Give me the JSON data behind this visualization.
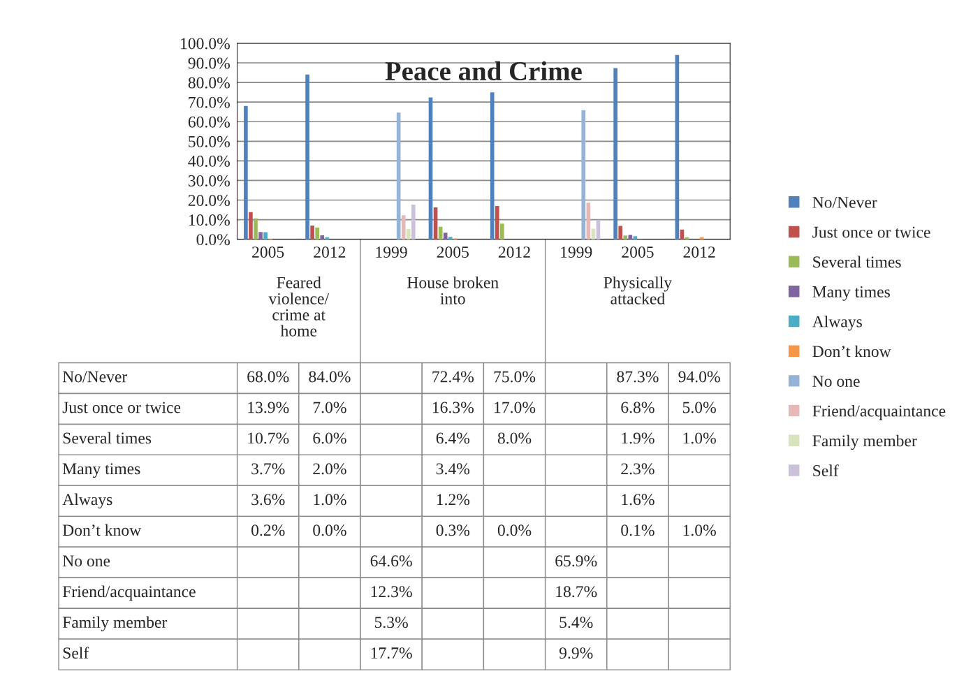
{
  "chart_data": {
    "type": "bar",
    "title": "Peace and Crime",
    "categories": [
      "2005",
      "2012",
      "1999",
      "2005",
      "2012",
      "1999",
      "2005",
      "2012"
    ],
    "annotations": [
      "Feared\nviolence/\ncrime at\nhome",
      "House broken\ninto",
      "Physically\nattacked"
    ],
    "ylim": [
      0,
      100
    ],
    "yticks": [
      {
        "value": 0,
        "label": "0.0%"
      },
      {
        "value": 10,
        "label": "10.0%"
      },
      {
        "value": 20,
        "label": "20.0%"
      },
      {
        "value": 30,
        "label": "30.0%"
      },
      {
        "value": 40,
        "label": "40.0%"
      },
      {
        "value": 50,
        "label": "50.0%"
      },
      {
        "value": 60,
        "label": "60.0%"
      },
      {
        "value": 70,
        "label": "70.0%"
      },
      {
        "value": 80,
        "label": "80.0%"
      },
      {
        "value": 90,
        "label": "90.0%"
      },
      {
        "value": 100,
        "label": "100.0%"
      }
    ],
    "grid": "y",
    "legend": "right",
    "series": [
      {
        "name": "No/Never",
        "color": "#4f81bd",
        "values": [
          68.0,
          84.0,
          null,
          72.4,
          75.0,
          null,
          87.3,
          94.0
        ],
        "value_labels": [
          "68.0%",
          "84.0%",
          null,
          "72.4%",
          "75.0%",
          null,
          "87.3%",
          "94.0%"
        ]
      },
      {
        "name": "Just once or twice",
        "color": "#c0504d",
        "values": [
          13.9,
          7.0,
          null,
          16.3,
          17.0,
          null,
          6.8,
          5.0
        ],
        "value_labels": [
          "13.9%",
          "7.0%",
          null,
          "16.3%",
          "17.0%",
          null,
          "6.8%",
          "5.0%"
        ]
      },
      {
        "name": "Several times",
        "color": "#9bbb59",
        "values": [
          10.7,
          6.0,
          null,
          6.4,
          8.0,
          null,
          1.9,
          1.0
        ],
        "value_labels": [
          "10.7%",
          "6.0%",
          null,
          "6.4%",
          "8.0%",
          null,
          "1.9%",
          "1.0%"
        ]
      },
      {
        "name": "Many times",
        "color": "#8064a2",
        "values": [
          3.7,
          2.0,
          null,
          3.4,
          null,
          null,
          2.3,
          null
        ],
        "value_labels": [
          "3.7%",
          "2.0%",
          null,
          "3.4%",
          null,
          null,
          "2.3%",
          null
        ]
      },
      {
        "name": "Always",
        "color": "#4bacc6",
        "values": [
          3.6,
          1.0,
          null,
          1.2,
          null,
          null,
          1.6,
          null
        ],
        "value_labels": [
          "3.6%",
          "1.0%",
          null,
          "1.2%",
          null,
          null,
          "1.6%",
          null
        ]
      },
      {
        "name": "Don’t know",
        "color": "#f79646",
        "values": [
          0.2,
          0.0,
          null,
          0.3,
          0.0,
          null,
          0.1,
          1.0
        ],
        "value_labels": [
          "0.2%",
          "0.0%",
          null,
          "0.3%",
          "0.0%",
          null,
          "0.1%",
          "1.0%"
        ]
      },
      {
        "name": "No one",
        "color": "#95b3d7",
        "values": [
          null,
          null,
          64.6,
          null,
          null,
          65.9,
          null,
          null
        ],
        "value_labels": [
          null,
          null,
          "64.6%",
          null,
          null,
          "65.9%",
          null,
          null
        ]
      },
      {
        "name": "Friend/acquaintance",
        "color": "#e6b9b8",
        "values": [
          null,
          null,
          12.3,
          null,
          null,
          18.7,
          null,
          null
        ],
        "value_labels": [
          null,
          null,
          "12.3%",
          null,
          null,
          "18.7%",
          null,
          null
        ]
      },
      {
        "name": "Family member",
        "color": "#d7e4bd",
        "values": [
          null,
          null,
          5.3,
          null,
          null,
          5.4,
          null,
          null
        ],
        "value_labels": [
          null,
          null,
          "5.3%",
          null,
          null,
          "5.4%",
          null,
          null
        ]
      },
      {
        "name": "Self",
        "color": "#ccc1da",
        "values": [
          null,
          null,
          17.7,
          null,
          null,
          9.9,
          null,
          null
        ],
        "value_labels": [
          null,
          null,
          "17.7%",
          null,
          null,
          "9.9%",
          null,
          null
        ]
      }
    ]
  }
}
